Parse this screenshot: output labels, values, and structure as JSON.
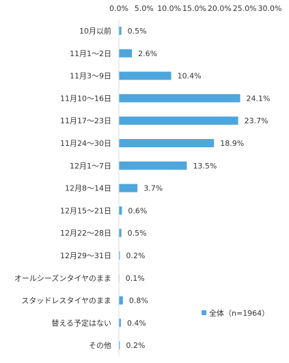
{
  "chart_data": {
    "type": "bar",
    "orientation": "horizontal",
    "categories": [
      "10月以前",
      "11月1～2日",
      "11月3～9日",
      "11月10～16日",
      "11月17～23日",
      "11月24～30日",
      "12月1～7日",
      "12月8～14日",
      "12月15～21日",
      "12月22～28日",
      "12月29～31日",
      "オールシーズンタイヤのまま",
      "スタッドレスタイヤのまま",
      "替える予定はない",
      "その他"
    ],
    "series": [
      {
        "name": "全体（n=1964）",
        "values": [
          0.5,
          2.6,
          10.4,
          24.1,
          23.7,
          18.9,
          13.5,
          3.7,
          0.6,
          0.5,
          0.2,
          0.1,
          0.8,
          0.4,
          0.2
        ],
        "color": "#4ea6dc"
      }
    ],
    "data_labels": [
      "0.5%",
      "2.6%",
      "10.4%",
      "24.1%",
      "23.7%",
      "18.9%",
      "13.5%",
      "3.7%",
      "0.6%",
      "0.5%",
      "0.2%",
      "0.1%",
      "0.8%",
      "0.4%",
      "0.2%"
    ],
    "x_ticks": [
      "0.0%",
      "5.0%",
      "10.0%",
      "15.0%",
      "20.0%",
      "25.0%",
      "30.0%"
    ],
    "xlim": [
      0,
      30
    ],
    "x_axis_position": "top",
    "grid": false,
    "legend_position": "bottom-right",
    "title": "",
    "xlabel": "",
    "ylabel": ""
  },
  "colors": {
    "bar": "#4ea6dc",
    "text": "#333333",
    "axis": "#d9d9d9"
  }
}
